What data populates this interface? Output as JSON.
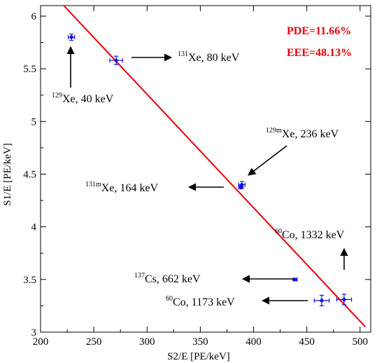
{
  "chart_data": {
    "type": "scatter",
    "title": "",
    "xlabel": "S2/E [PE/keV]",
    "ylabel": "S1/E [PE/keV]",
    "xlim": [
      200,
      510
    ],
    "ylim": [
      3,
      6.1
    ],
    "xticks": [
      200,
      250,
      300,
      350,
      400,
      450,
      500
    ],
    "yticks": [
      3,
      3.5,
      4,
      4.5,
      5,
      5.5,
      6
    ],
    "ytick_labels": [
      "3",
      "3.5",
      "4",
      "4.5",
      "5",
      "5.5",
      "6"
    ],
    "grid": false,
    "points": [
      {
        "x": 229,
        "y": 5.8,
        "xerr": 3,
        "yerr": 0.03
      },
      {
        "x": 271,
        "y": 5.58,
        "xerr": 6,
        "yerr": 0.04
      },
      {
        "x": 388,
        "y": 4.38,
        "xerr": 2,
        "yerr": 0.02
      },
      {
        "x": 389,
        "y": 4.4,
        "xerr": 3,
        "yerr": 0.03
      },
      {
        "x": 439,
        "y": 3.5,
        "xerr": 2,
        "yerr": 0.01
      },
      {
        "x": 464,
        "y": 3.3,
        "xerr": 7,
        "yerr": 0.05
      },
      {
        "x": 485,
        "y": 3.31,
        "xerr": 7,
        "yerr": 0.05
      }
    ],
    "fit_line": {
      "x": [
        220,
        505
      ],
      "y": [
        6.12,
        3.05
      ],
      "color": "#e8000b"
    },
    "point_color": "#1010e0",
    "annotations": [
      {
        "mass": "131",
        "rest": "Xe, 80 keV"
      },
      {
        "mass": "129",
        "rest": "Xe, 40 keV"
      },
      {
        "mass": "129m",
        "rest": "Xe, 236 keV"
      },
      {
        "mass": "131m",
        "rest": "Xe, 164 keV"
      },
      {
        "mass": "60",
        "rest": "Co, 1332 keV"
      },
      {
        "mass": "137",
        "rest": "Cs, 662 keV"
      },
      {
        "mass": "60",
        "rest": "Co, 1173 keV"
      }
    ],
    "metrics": {
      "pde": "PDE=11.66%",
      "eee": "EEE=48.13%"
    }
  }
}
